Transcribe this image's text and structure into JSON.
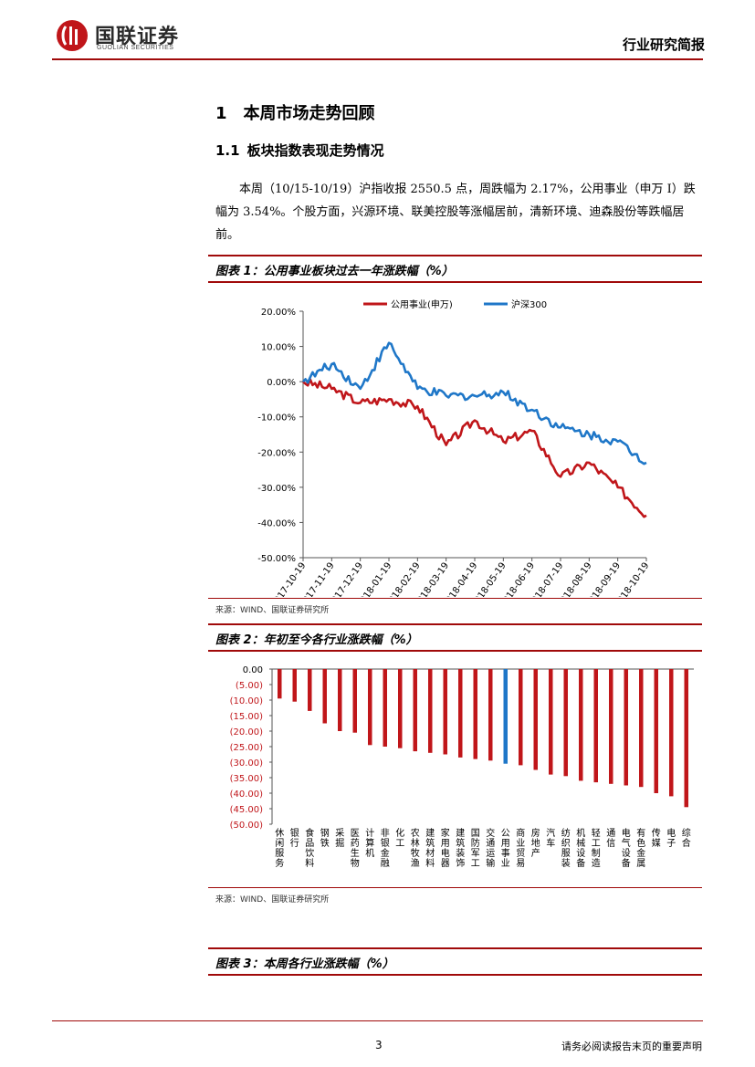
{
  "header": {
    "logo_cn": "国联证券",
    "logo_en": "GUOLIAN SECURITIES",
    "report_type": "行业研究简报"
  },
  "section1": {
    "number": "1",
    "title": "本周市场走势回顾"
  },
  "section1_1": {
    "number": "1.1",
    "title": "板块指数表现走势情况",
    "paragraph": "本周（10/15-10/19）沪指收报 2550.5 点，周跌幅为 2.17%，公用事业（申万 I）跌幅为 3.54%。个股方面，兴源环境、联美控股等涨幅居前，清新环境、迪森股份等跌幅居前。"
  },
  "figure1": {
    "title": "图表 1：公用事业板块过去一年涨跌幅（%）",
    "source": "来源：WIND、国联证券研究所"
  },
  "figure2": {
    "title": "图表 2：年初至今各行业涨跌幅（%）",
    "source": "来源：WIND、国联证券研究所"
  },
  "figure3": {
    "title": "图表 3：本周各行业涨跌幅（%）"
  },
  "footer": {
    "page": "3",
    "disclaimer": "请务必阅读报告末页的重要声明"
  },
  "colors": {
    "brand_red": "#a00a0a",
    "series_red": "#c0161a",
    "series_blue": "#1f77c8"
  },
  "chart_data": [
    {
      "type": "line",
      "x": [
        "2017-10-19",
        "2017-11-19",
        "2017-12-19",
        "2018-01-19",
        "2018-02-19",
        "2018-03-19",
        "2018-04-19",
        "2018-05-19",
        "2018-06-19",
        "2018-07-19",
        "2018-08-19",
        "2018-09-19",
        "2018-10-19"
      ],
      "ylim": [
        -50,
        20
      ],
      "yticks": [
        "20.00%",
        "10.00%",
        "0.00%",
        "-10.00%",
        "-20.00%",
        "-30.00%",
        "-40.00%",
        "-50.00%"
      ],
      "legend": "top",
      "series": [
        {
          "name": "公用事业(申万)",
          "color": "#c0161a",
          "values": [
            0,
            -2,
            -6,
            -5,
            -7,
            -18,
            -11,
            -17,
            -14,
            -27,
            -23,
            -30,
            -38
          ]
        },
        {
          "name": "沪深300",
          "color": "#1f77c8",
          "values": [
            0,
            5,
            -2,
            11,
            -2,
            -4,
            -4,
            -3,
            -8,
            -13,
            -15,
            -17,
            -23
          ]
        }
      ]
    },
    {
      "type": "bar",
      "ylim": [
        -50,
        0
      ],
      "yticks": [
        "0.00",
        "(5.00)",
        "(10.00)",
        "(15.00)",
        "(20.00)",
        "(25.00)",
        "(30.00)",
        "(35.00)",
        "(40.00)",
        "(45.00)",
        "(50.00)"
      ],
      "highlight": "公用事业",
      "categories": [
        "休闲服务",
        "银行",
        "食品饮料",
        "钢铁",
        "采掘",
        "医药生物",
        "计算机",
        "非银金融",
        "化工",
        "农林牧渔",
        "建筑材料",
        "家用电器",
        "建筑装饰",
        "国防军工",
        "交通运输",
        "公用事业",
        "商业贸易",
        "房地产",
        "汽车",
        "纺织服装",
        "机械设备",
        "轻工制造",
        "通信",
        "电气设备",
        "有色金属",
        "传媒",
        "电子",
        "综合"
      ],
      "values": [
        -9.5,
        -10.5,
        -13.5,
        -17.5,
        -20,
        -20.5,
        -24.5,
        -25,
        -25.5,
        -26.5,
        -27,
        -27.5,
        -28.5,
        -29,
        -29.5,
        -30.5,
        -31,
        -32.5,
        -34,
        -34.5,
        -36,
        -36.5,
        -37,
        -37.5,
        -38,
        -40,
        -41,
        -44.5
      ]
    }
  ]
}
